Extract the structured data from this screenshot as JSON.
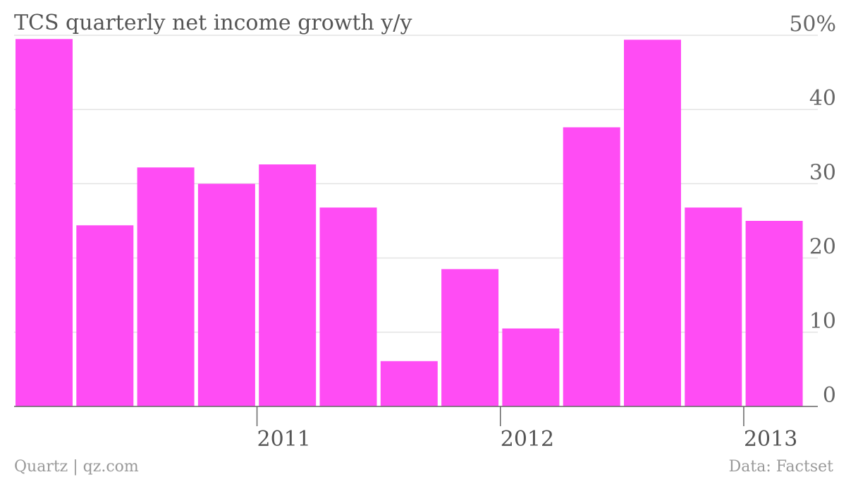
{
  "chart_data": {
    "type": "bar",
    "title": "TCS quarterly net income growth y/y",
    "ylim": [
      0,
      50
    ],
    "yticks": [
      {
        "value": 50,
        "label": "50%"
      },
      {
        "value": 40,
        "label": "40"
      },
      {
        "value": 30,
        "label": "30"
      },
      {
        "value": 20,
        "label": "20"
      },
      {
        "value": 10,
        "label": "10"
      },
      {
        "value": 0,
        "label": "0"
      }
    ],
    "xticks": [
      {
        "after_bar": 4,
        "label": "2011"
      },
      {
        "after_bar": 8,
        "label": "2012"
      },
      {
        "after_bar": 12,
        "label": "2013"
      }
    ],
    "values": [
      49.5,
      24.4,
      32.2,
      30.0,
      32.6,
      26.8,
      6.1,
      18.5,
      10.5,
      37.6,
      49.4,
      26.8,
      25.0
    ],
    "color": "#ff4cf4",
    "grid": true,
    "yaxis_side": "right"
  },
  "footer": {
    "source_left": "Quartz | qz.com",
    "source_right": "Data: Factset"
  }
}
